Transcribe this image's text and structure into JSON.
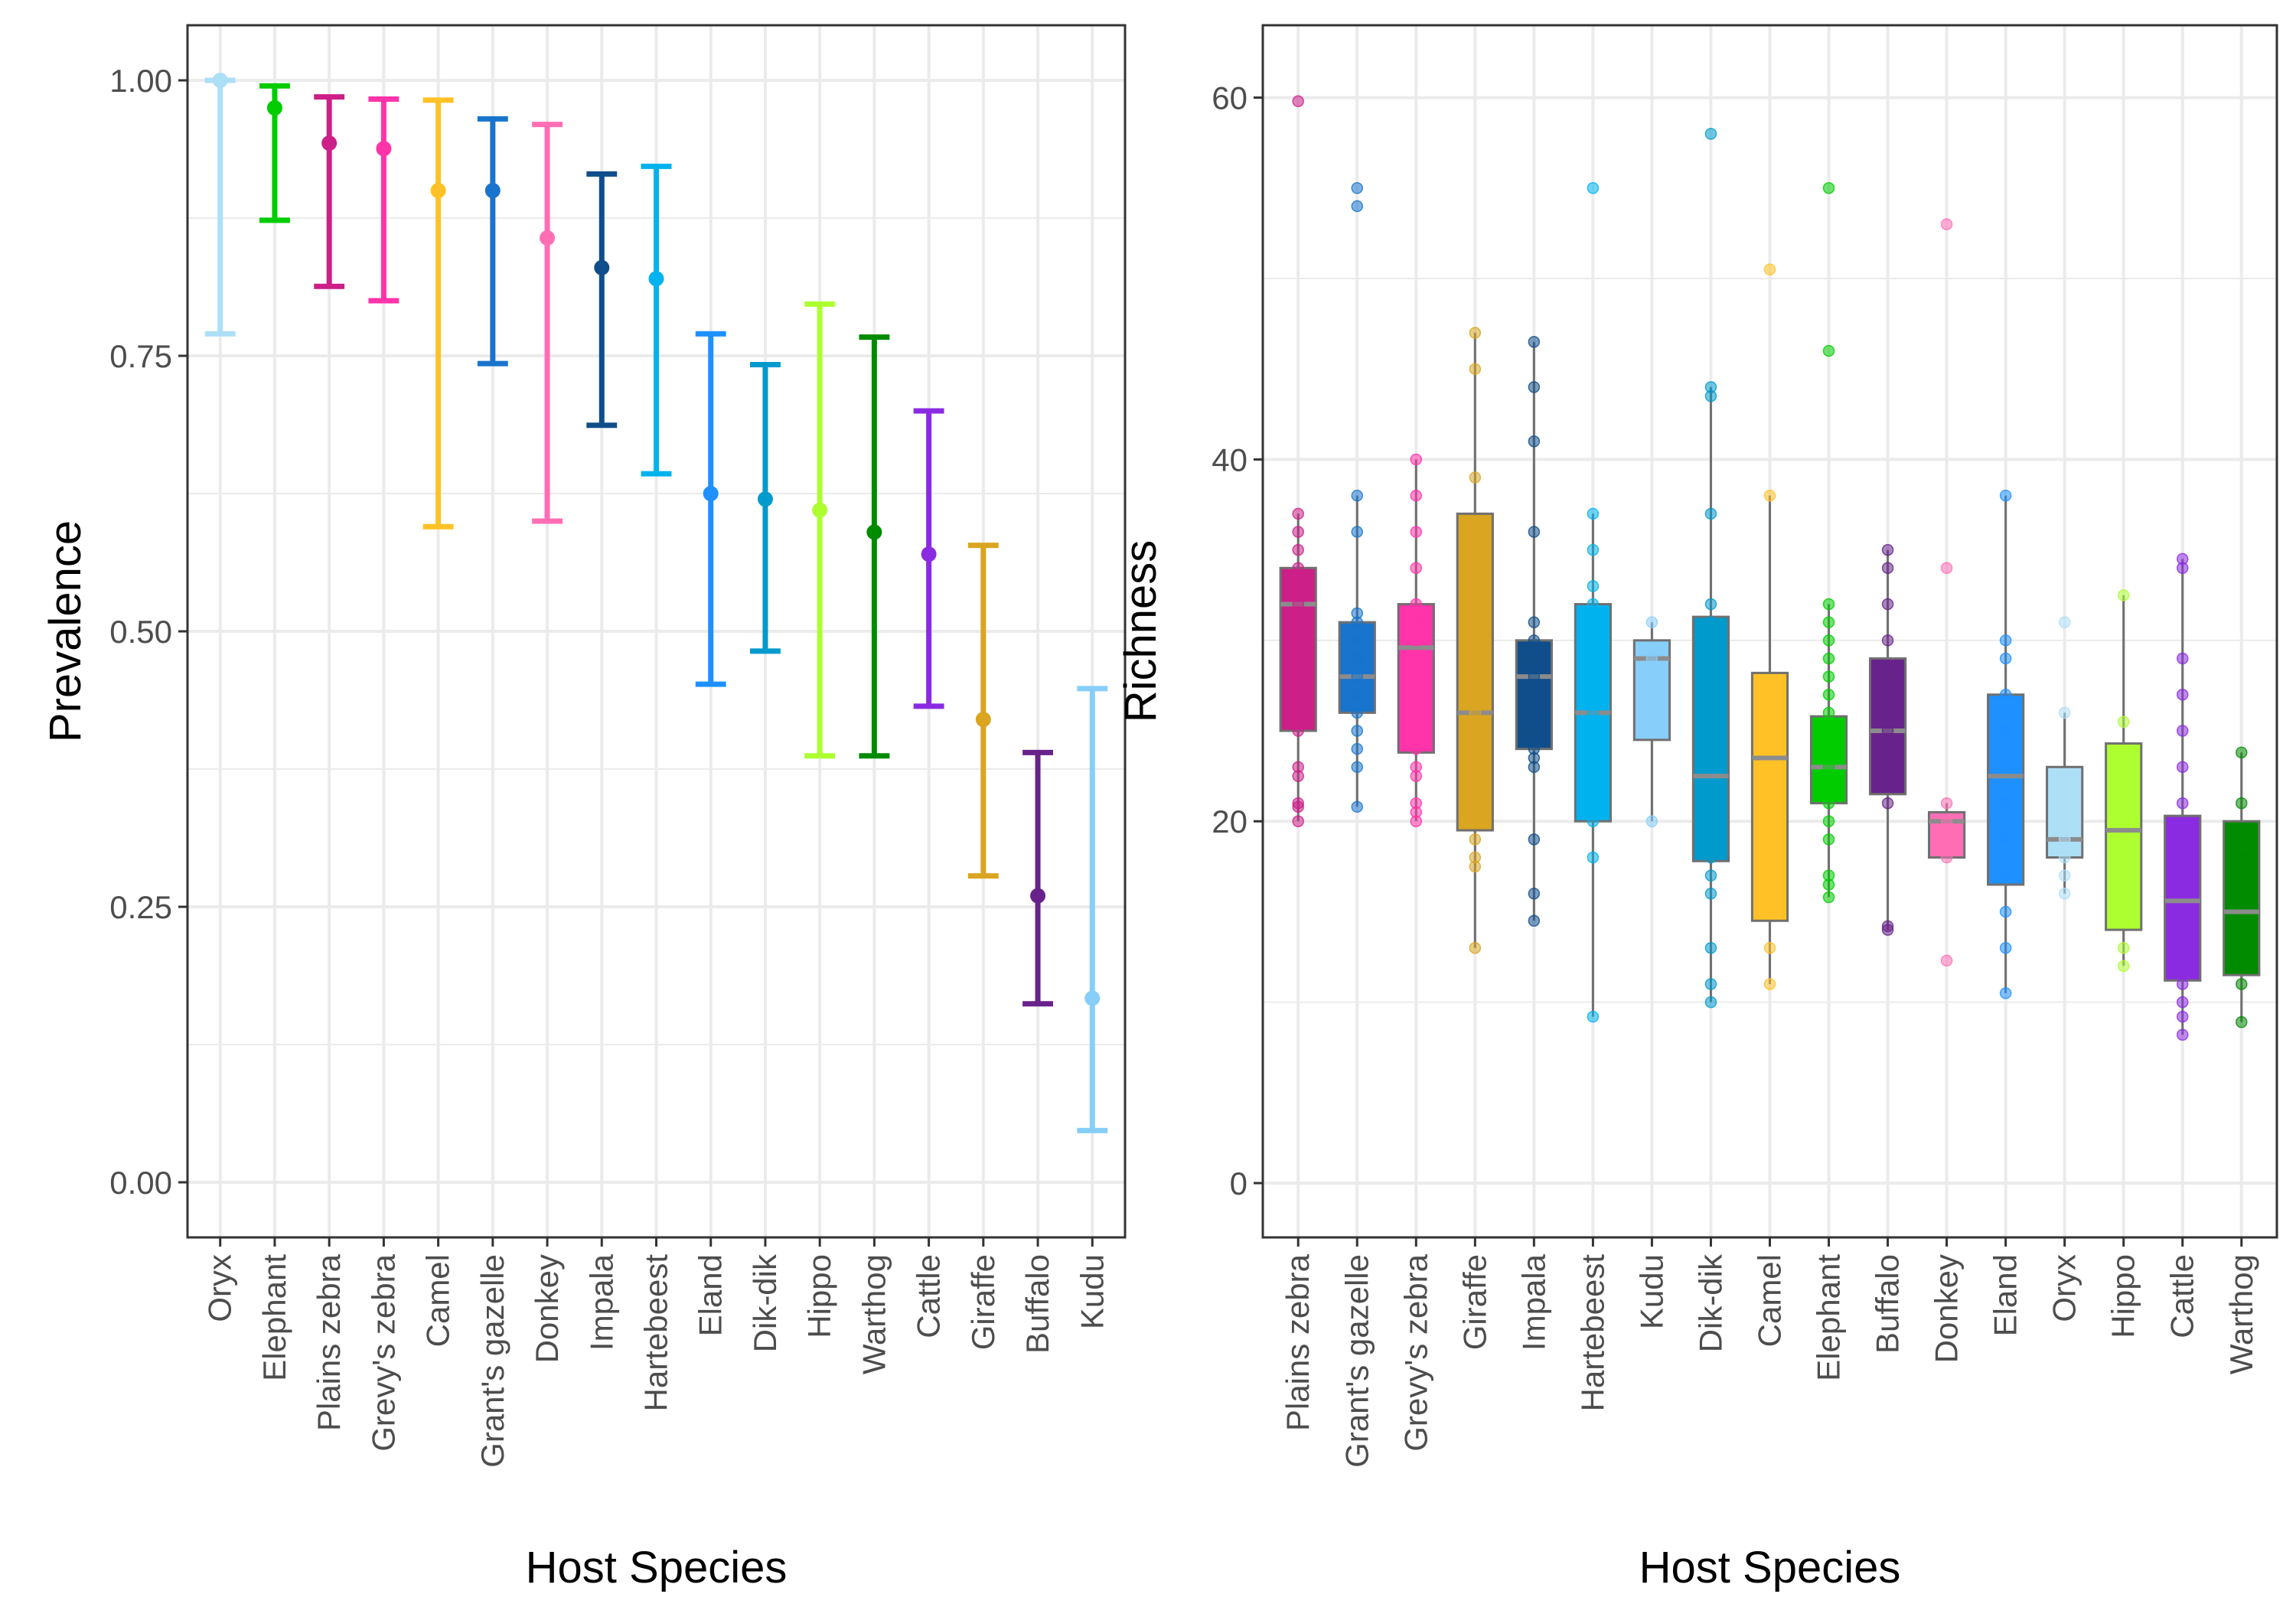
{
  "chart_data": [
    {
      "type": "errorbar",
      "xlabel": "Host Species",
      "ylabel": "Prevalence",
      "ylim": [
        -0.05,
        1.05
      ],
      "yticks": [
        "0.00",
        "0.25",
        "0.50",
        "0.75",
        "1.00"
      ],
      "ytick_values": [
        0,
        0.25,
        0.5,
        0.75,
        1.0
      ],
      "grid": true,
      "points": [
        {
          "category": "Oryx",
          "value": 1.0,
          "lower": 0.77,
          "upper": 1.0,
          "color": "#ADDFF7"
        },
        {
          "category": "Elephant",
          "value": 0.975,
          "lower": 0.873,
          "upper": 0.995,
          "color": "#00CC00"
        },
        {
          "category": "Plains zebra",
          "value": 0.943,
          "lower": 0.813,
          "upper": 0.985,
          "color": "#CC1F88"
        },
        {
          "category": "Grevy's zebra",
          "value": 0.938,
          "lower": 0.8,
          "upper": 0.983,
          "color": "#FF33AA"
        },
        {
          "category": "Camel",
          "value": 0.9,
          "lower": 0.595,
          "upper": 0.982,
          "color": "#FFC125"
        },
        {
          "category": "Grant's gazelle",
          "value": 0.9,
          "lower": 0.743,
          "upper": 0.965,
          "color": "#1874CD"
        },
        {
          "category": "Donkey",
          "value": 0.857,
          "lower": 0.6,
          "upper": 0.96,
          "color": "#FF6EB4"
        },
        {
          "category": "Impala",
          "value": 0.83,
          "lower": 0.687,
          "upper": 0.915,
          "color": "#104E8B"
        },
        {
          "category": "Hartebeest",
          "value": 0.82,
          "lower": 0.643,
          "upper": 0.922,
          "color": "#00B2EE"
        },
        {
          "category": "Eland",
          "value": 0.625,
          "lower": 0.452,
          "upper": 0.77,
          "color": "#1E90FF"
        },
        {
          "category": "Dik-dik",
          "value": 0.62,
          "lower": 0.482,
          "upper": 0.742,
          "color": "#009ACD"
        },
        {
          "category": "Hippo",
          "value": 0.61,
          "lower": 0.387,
          "upper": 0.797,
          "color": "#ADFF2F"
        },
        {
          "category": "Warthog",
          "value": 0.59,
          "lower": 0.387,
          "upper": 0.767,
          "color": "#008B00"
        },
        {
          "category": "Cattle",
          "value": 0.57,
          "lower": 0.432,
          "upper": 0.7,
          "color": "#8A2BE2"
        },
        {
          "category": "Giraffe",
          "value": 0.42,
          "lower": 0.278,
          "upper": 0.578,
          "color": "#DAA520"
        },
        {
          "category": "Buffalo",
          "value": 0.26,
          "lower": 0.162,
          "upper": 0.39,
          "color": "#68228B"
        },
        {
          "category": "Kudu",
          "value": 0.167,
          "lower": 0.047,
          "upper": 0.448,
          "color": "#87CEFA"
        }
      ]
    },
    {
      "type": "box",
      "xlabel": "Host Species",
      "ylabel": "Richness",
      "ylim": [
        -3,
        64
      ],
      "yticks": [
        "0",
        "20",
        "40",
        "60"
      ],
      "ytick_values": [
        0,
        20,
        40,
        60
      ],
      "grid": true,
      "boxes": [
        {
          "category": "Plains zebra",
          "q1": 25,
          "median": 32,
          "q3": 34,
          "whisker_low": 20,
          "whisker_high": 37,
          "color": "#CC1F88",
          "points": [
            20,
            20.8,
            21,
            22.5,
            23,
            25,
            26,
            27,
            28,
            29,
            30,
            31,
            32,
            33,
            34,
            35,
            36,
            37,
            59.8
          ]
        },
        {
          "category": "Grant's gazelle",
          "q1": 26,
          "median": 28,
          "q3": 31,
          "whisker_low": 20.8,
          "whisker_high": 38,
          "color": "#1874CD",
          "points": [
            20.8,
            23,
            24,
            25,
            26,
            27,
            28,
            29,
            30,
            31,
            31.5,
            36,
            38,
            54,
            55
          ]
        },
        {
          "category": "Grevy's zebra",
          "q1": 23.8,
          "median": 29.6,
          "q3": 32,
          "whisker_low": 20,
          "whisker_high": 40,
          "color": "#FF33AA",
          "points": [
            20,
            20.5,
            21,
            22.5,
            23,
            24,
            26,
            28,
            29,
            30,
            31,
            32,
            34,
            36,
            38,
            40
          ]
        },
        {
          "category": "Giraffe",
          "q1": 19.5,
          "median": 26,
          "q3": 37,
          "whisker_low": 13,
          "whisker_high": 47,
          "color": "#DAA520",
          "points": [
            13,
            17.5,
            18,
            19,
            20,
            24,
            26,
            30,
            33,
            36,
            39,
            45,
            47
          ]
        },
        {
          "category": "Impala",
          "q1": 24,
          "median": 28,
          "q3": 30,
          "whisker_low": 14.5,
          "whisker_high": 46.5,
          "color": "#104E8B",
          "points": [
            14.5,
            16,
            19,
            23,
            23.5,
            24,
            25,
            26,
            27,
            28,
            29,
            30,
            31,
            36,
            41,
            44,
            46.5
          ]
        },
        {
          "category": "Hartebeest",
          "q1": 20,
          "median": 26,
          "q3": 32,
          "whisker_low": 9.2,
          "whisker_high": 37,
          "color": "#00B2EE",
          "points": [
            9.2,
            18,
            20,
            22,
            24,
            26,
            28,
            30,
            32,
            33,
            35,
            37,
            55
          ]
        },
        {
          "category": "Kudu",
          "q1": 24.5,
          "median": 29,
          "q3": 30,
          "whisker_low": 20,
          "whisker_high": 31,
          "color": "#87CEFA",
          "points": [
            20,
            29,
            31
          ]
        },
        {
          "category": "Dik-dik",
          "q1": 17.8,
          "median": 22.5,
          "q3": 31.3,
          "whisker_low": 10,
          "whisker_high": 44,
          "color": "#009ACD",
          "points": [
            10,
            11,
            13,
            16,
            17,
            18,
            19,
            20,
            21,
            22,
            23,
            24,
            25,
            26,
            27,
            28,
            29,
            30,
            31,
            32,
            37,
            43.5,
            44,
            58
          ]
        },
        {
          "category": "Camel",
          "q1": 14.5,
          "median": 23.5,
          "q3": 28.2,
          "whisker_low": 11,
          "whisker_high": 38,
          "color": "#FFC125",
          "points": [
            11,
            13,
            20,
            24,
            27,
            38,
            50.5
          ]
        },
        {
          "category": "Elephant",
          "q1": 21,
          "median": 23,
          "q3": 25.8,
          "whisker_low": 15.8,
          "whisker_high": 32,
          "color": "#00CC00",
          "points": [
            15.8,
            16.5,
            17,
            19,
            20,
            21,
            22,
            23,
            24,
            25,
            26,
            27,
            28,
            29,
            30,
            31,
            32,
            46,
            55
          ]
        },
        {
          "category": "Buffalo",
          "q1": 21.5,
          "median": 25,
          "q3": 29,
          "whisker_low": 14,
          "whisker_high": 35,
          "color": "#68228B",
          "points": [
            14,
            14.2,
            21,
            22,
            25,
            28,
            30,
            32,
            34,
            35
          ]
        },
        {
          "category": "Donkey",
          "q1": 18,
          "median": 20,
          "q3": 20.5,
          "whisker_low": 18,
          "whisker_high": 21,
          "color": "#FF6EB4",
          "points": [
            12.3,
            18,
            19,
            20,
            21,
            34,
            53
          ]
        },
        {
          "category": "Eland",
          "q1": 16.5,
          "median": 22.5,
          "q3": 27,
          "whisker_low": 10.5,
          "whisker_high": 38,
          "color": "#1E90FF",
          "points": [
            10.5,
            13,
            15,
            17,
            19,
            21,
            23,
            25,
            27,
            29,
            30,
            38
          ]
        },
        {
          "category": "Oryx",
          "q1": 18,
          "median": 19,
          "q3": 23,
          "whisker_low": 16,
          "whisker_high": 26,
          "color": "#ADDFF7",
          "points": [
            16,
            17,
            18,
            19,
            26,
            31
          ]
        },
        {
          "category": "Hippo",
          "q1": 14,
          "median": 19.5,
          "q3": 24.3,
          "whisker_low": 12,
          "whisker_high": 32.5,
          "color": "#ADFF2F",
          "points": [
            12,
            13,
            19,
            25.5,
            32.5
          ]
        },
        {
          "category": "Cattle",
          "q1": 11.2,
          "median": 15.6,
          "q3": 20.3,
          "whisker_low": 8.2,
          "whisker_high": 34.5,
          "color": "#8A2BE2",
          "points": [
            8.2,
            9.2,
            10,
            11,
            12,
            13,
            15,
            17,
            19,
            21,
            23,
            25,
            27,
            29,
            34,
            34.5
          ]
        },
        {
          "category": "Warthog",
          "q1": 11.5,
          "median": 15,
          "q3": 20,
          "whisker_low": 8.9,
          "whisker_high": 23.8,
          "color": "#008B00",
          "points": [
            8.9,
            11,
            12,
            18,
            21,
            23.8
          ]
        }
      ]
    }
  ]
}
